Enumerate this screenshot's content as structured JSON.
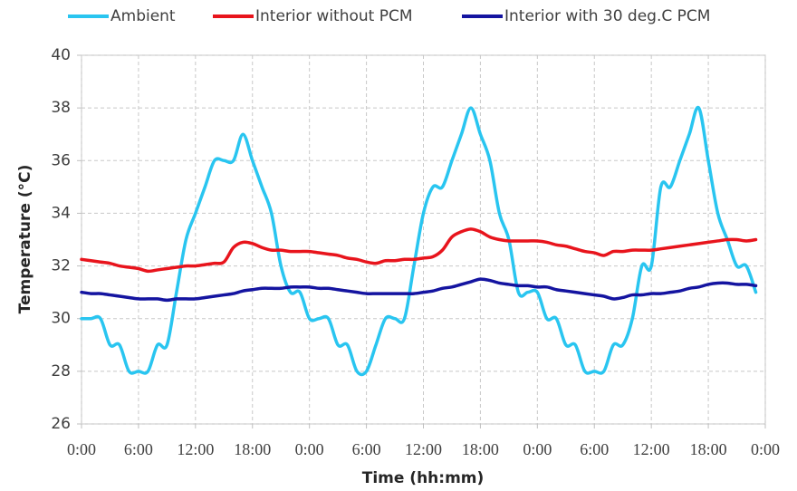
{
  "chart_data": {
    "type": "line",
    "x_label": "Time (hh:mm)",
    "y_label": "Temperature (°C)",
    "x": [
      0,
      1,
      2,
      3,
      4,
      5,
      6,
      7,
      8,
      9,
      10,
      11,
      12,
      13,
      14,
      15,
      16,
      17,
      18,
      19,
      20,
      21,
      22,
      23,
      24,
      25,
      26,
      27,
      28,
      29,
      30,
      31,
      32,
      33,
      34,
      35,
      36,
      37,
      38,
      39,
      40,
      41,
      42,
      43,
      44,
      45,
      46,
      47,
      48,
      49,
      50,
      51,
      52,
      53,
      54,
      55,
      56,
      57,
      58,
      59,
      60,
      61,
      62,
      63,
      64,
      65,
      66,
      67,
      68,
      69,
      70,
      71
    ],
    "series": [
      {
        "name": "Ambient",
        "color": "#29c5f0",
        "values": [
          30,
          30,
          30,
          29,
          29,
          28,
          28,
          28,
          29,
          29,
          31,
          33,
          34,
          35,
          36,
          36,
          36,
          37,
          36,
          35,
          34,
          32,
          31,
          31,
          30,
          30,
          30,
          29,
          29,
          28,
          28,
          29,
          30,
          30,
          30,
          32,
          34,
          35,
          35,
          36,
          37,
          38,
          37,
          36,
          34,
          33,
          31,
          31,
          31,
          30,
          30,
          29,
          29,
          28,
          28,
          28,
          29,
          29,
          30,
          32,
          32,
          35,
          35,
          36,
          37,
          38,
          36,
          34,
          33,
          32,
          32,
          31
        ]
      },
      {
        "name": "Interior without PCM",
        "color": "#e8141c",
        "values": [
          32.25,
          32.2,
          32.15,
          32.1,
          32.0,
          31.95,
          31.9,
          31.8,
          31.85,
          31.9,
          31.95,
          32.0,
          32.0,
          32.05,
          32.1,
          32.15,
          32.7,
          32.9,
          32.85,
          32.7,
          32.6,
          32.6,
          32.55,
          32.55,
          32.55,
          32.5,
          32.45,
          32.4,
          32.3,
          32.25,
          32.15,
          32.1,
          32.2,
          32.2,
          32.25,
          32.25,
          32.3,
          32.35,
          32.6,
          33.1,
          33.3,
          33.4,
          33.3,
          33.1,
          33.0,
          32.95,
          32.95,
          32.95,
          32.95,
          32.9,
          32.8,
          32.75,
          32.65,
          32.55,
          32.5,
          32.4,
          32.55,
          32.55,
          32.6,
          32.6,
          32.6,
          32.65,
          32.7,
          32.75,
          32.8,
          32.85,
          32.9,
          32.95,
          33.0,
          33.0,
          32.95,
          33.0
        ]
      },
      {
        "name": "Interior with 30 deg.C PCM",
        "color": "#1414a0",
        "values": [
          31.0,
          30.95,
          30.95,
          30.9,
          30.85,
          30.8,
          30.75,
          30.75,
          30.75,
          30.7,
          30.75,
          30.75,
          30.75,
          30.8,
          30.85,
          30.9,
          30.95,
          31.05,
          31.1,
          31.15,
          31.15,
          31.15,
          31.2,
          31.2,
          31.2,
          31.15,
          31.15,
          31.1,
          31.05,
          31.0,
          30.95,
          30.95,
          30.95,
          30.95,
          30.95,
          30.95,
          31.0,
          31.05,
          31.15,
          31.2,
          31.3,
          31.4,
          31.5,
          31.45,
          31.35,
          31.3,
          31.25,
          31.25,
          31.2,
          31.2,
          31.1,
          31.05,
          31.0,
          30.95,
          30.9,
          30.85,
          30.75,
          30.8,
          30.9,
          30.9,
          30.95,
          30.95,
          31.0,
          31.05,
          31.15,
          31.2,
          31.3,
          31.35,
          31.35,
          31.3,
          31.3,
          31.25
        ]
      }
    ],
    "xlim": [
      0,
      72
    ],
    "xticks": [
      {
        "value": 0,
        "label": "0:00"
      },
      {
        "value": 6,
        "label": "6:00"
      },
      {
        "value": 12,
        "label": "12:00"
      },
      {
        "value": 18,
        "label": "18:00"
      },
      {
        "value": 24,
        "label": "0:00"
      },
      {
        "value": 30,
        "label": "6:00"
      },
      {
        "value": 36,
        "label": "12:00"
      },
      {
        "value": 42,
        "label": "18:00"
      },
      {
        "value": 48,
        "label": "0:00"
      },
      {
        "value": 54,
        "label": "6:00"
      },
      {
        "value": 60,
        "label": "12:00"
      },
      {
        "value": 66,
        "label": "18:00"
      },
      {
        "value": 72,
        "label": "0:00"
      }
    ],
    "ylim": [
      26,
      40
    ],
    "yticks": [
      26,
      28,
      30,
      32,
      34,
      36,
      38,
      40
    ],
    "grid": true,
    "legend": "top"
  }
}
